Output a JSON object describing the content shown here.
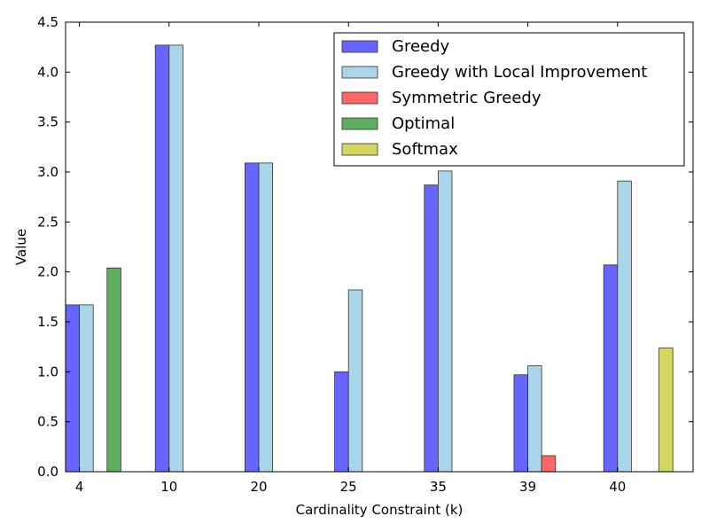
{
  "chart_data": {
    "type": "bar",
    "title": "",
    "xlabel": "Cardinality Constraint (k)",
    "ylabel": "Value",
    "ylim": [
      0,
      4.5
    ],
    "yticks": [
      "0.0",
      "0.5",
      "1.0",
      "1.5",
      "2.0",
      "2.5",
      "3.0",
      "3.5",
      "4.0",
      "4.5"
    ],
    "categories": [
      "4",
      "10",
      "20",
      "25",
      "35",
      "39",
      "40"
    ],
    "legend_position": "top-right",
    "series": [
      {
        "name": "Greedy",
        "color": "#6666ff",
        "values": [
          1.67,
          4.27,
          3.09,
          1.0,
          2.87,
          0.97,
          2.07
        ]
      },
      {
        "name": "Greedy with Local Improvement",
        "color": "#a8d5e8",
        "values": [
          1.67,
          4.27,
          3.09,
          1.82,
          3.01,
          1.06,
          2.91
        ]
      },
      {
        "name": "Symmetric Greedy",
        "color": "#ff6666",
        "values": [
          null,
          null,
          null,
          null,
          null,
          0.16,
          null
        ]
      },
      {
        "name": "Optimal",
        "color": "#5fae5f",
        "values": [
          2.04,
          null,
          null,
          null,
          null,
          null,
          null
        ]
      },
      {
        "name": "Softmax",
        "color": "#d4d65e",
        "values": [
          null,
          null,
          null,
          null,
          null,
          null,
          1.24
        ]
      }
    ]
  }
}
